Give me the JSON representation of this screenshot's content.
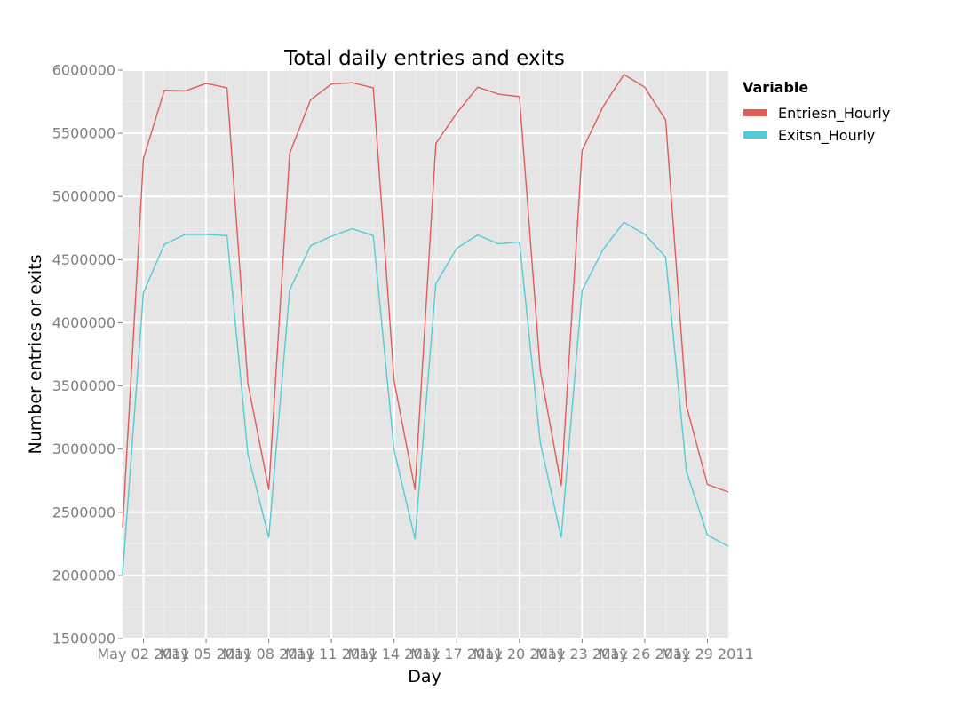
{
  "chart_data": {
    "type": "line",
    "title": "Total daily entries and exits",
    "xlabel": "Day",
    "ylabel": "Number entries or exits",
    "x": [
      "2011-05-01",
      "2011-05-02",
      "2011-05-03",
      "2011-05-04",
      "2011-05-05",
      "2011-05-06",
      "2011-05-07",
      "2011-05-08",
      "2011-05-09",
      "2011-05-10",
      "2011-05-11",
      "2011-05-12",
      "2011-05-13",
      "2011-05-14",
      "2011-05-15",
      "2011-05-16",
      "2011-05-17",
      "2011-05-18",
      "2011-05-19",
      "2011-05-20",
      "2011-05-21",
      "2011-05-22",
      "2011-05-23",
      "2011-05-24",
      "2011-05-25",
      "2011-05-26",
      "2011-05-27",
      "2011-05-28",
      "2011-05-29",
      "2011-05-30"
    ],
    "x_tick_values": [
      "2011-05-02",
      "2011-05-05",
      "2011-05-08",
      "2011-05-11",
      "2011-05-14",
      "2011-05-17",
      "2011-05-20",
      "2011-05-23",
      "2011-05-26",
      "2011-05-29"
    ],
    "x_tick_labels": [
      "May 02 2011",
      "May 05 2011",
      "May 08 2011",
      "May 11 2011",
      "May 14 2011",
      "May 17 2011",
      "May 20 2011",
      "May 23 2011",
      "May 26 2011",
      "May 29 2011"
    ],
    "xlim": [
      "2011-05-01",
      "2011-05-30"
    ],
    "ylim": [
      1500000,
      6000000
    ],
    "y_ticks": [
      1500000,
      2000000,
      2500000,
      3000000,
      3500000,
      4000000,
      4500000,
      5000000,
      5500000,
      6000000
    ],
    "y_tick_labels": [
      "1500000",
      "2000000",
      "2500000",
      "3000000",
      "3500000",
      "4000000",
      "4500000",
      "5000000",
      "5500000",
      "6000000"
    ],
    "grid": true,
    "legend": {
      "title": "Variable",
      "position": "right"
    },
    "series": [
      {
        "name": "Entriesn_Hourly",
        "color": "#e15c57",
        "values": [
          2380000,
          5300000,
          5840000,
          5835000,
          5895000,
          5860000,
          3520000,
          2680000,
          5340000,
          5765000,
          5890000,
          5900000,
          5860000,
          3540000,
          2680000,
          5420000,
          5660000,
          5865000,
          5810000,
          5790000,
          3620000,
          2710000,
          5365000,
          5710000,
          5965000,
          5865000,
          5605000,
          3340000,
          2720000,
          2660000
        ]
      },
      {
        "name": "Exitsn_Hourly",
        "color": "#52cbd6",
        "values": [
          2010000,
          4240000,
          4620000,
          4700000,
          4700000,
          4690000,
          2960000,
          2300000,
          4260000,
          4610000,
          4685000,
          4745000,
          4690000,
          2990000,
          2290000,
          4310000,
          4590000,
          4695000,
          4625000,
          4640000,
          3050000,
          2300000,
          4255000,
          4580000,
          4795000,
          4700000,
          4520000,
          2820000,
          2320000,
          2230000
        ]
      }
    ]
  }
}
